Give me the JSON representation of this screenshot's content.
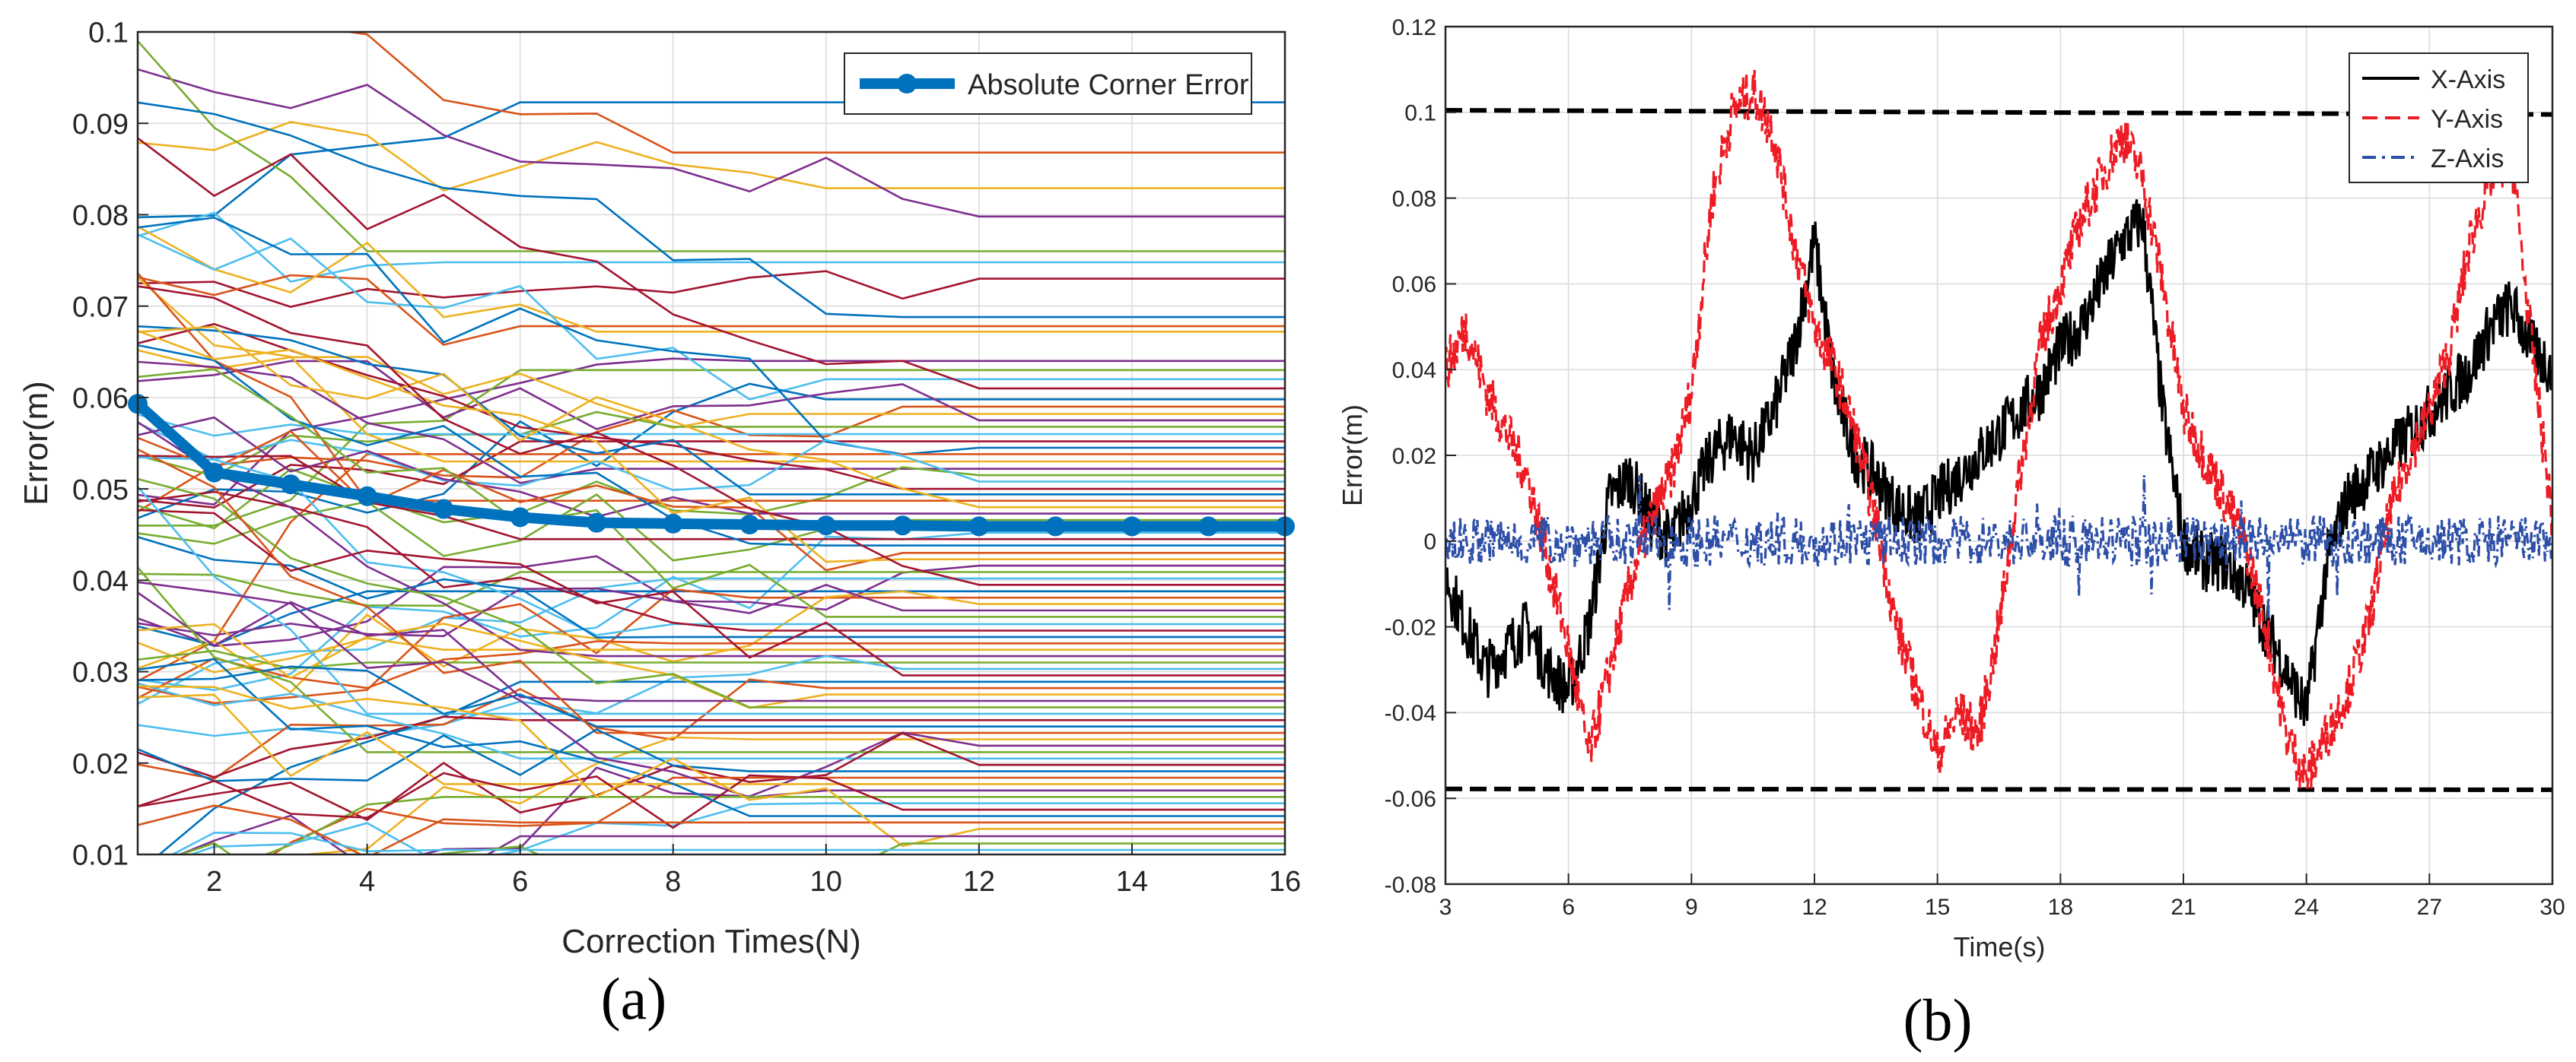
{
  "chart_data": [
    {
      "type": "line",
      "panel_label": "(a)",
      "xlabel": "Correction Times(N)",
      "ylabel": "Error(m)",
      "xlim": [
        1,
        16
      ],
      "ylim": [
        0.01,
        0.1
      ],
      "xticks": [
        2,
        4,
        6,
        8,
        10,
        12,
        14,
        16
      ],
      "xtick_labels": [
        "2",
        "4",
        "6",
        "8",
        "10",
        "12",
        "14",
        "16"
      ],
      "yticks": [
        0.01,
        0.02,
        0.03,
        0.04,
        0.05,
        0.06,
        0.07,
        0.08,
        0.09,
        0.1
      ],
      "ytick_labels": [
        "0.01",
        "0.02",
        "0.03",
        "0.04",
        "0.05",
        "0.06",
        "0.07",
        "0.08",
        "0.09",
        "0.1"
      ],
      "grid": true,
      "legend_position": "top-right",
      "legend": [
        "Absolute Corner Error"
      ],
      "highlight_series": {
        "name": "Absolute Corner Error",
        "color": "#0072BD",
        "x": [
          1,
          2,
          3,
          4,
          5,
          6,
          7,
          8,
          9,
          10,
          11,
          12,
          13,
          14,
          15,
          16
        ],
        "values": [
          0.0593,
          0.0518,
          0.0505,
          0.0492,
          0.0478,
          0.0469,
          0.0463,
          0.0462,
          0.0461,
          0.046,
          0.046,
          0.0459,
          0.0459,
          0.0459,
          0.0459,
          0.0459
        ]
      },
      "background_series": {
        "description_count": 90,
        "colors": [
          "#0072BD",
          "#D95319",
          "#EDB120",
          "#7E2F8E",
          "#77AC30",
          "#4DBEEE",
          "#A2142F"
        ],
        "final_values": [
          0.0923,
          0.0868,
          0.0829,
          0.0798,
          0.076,
          0.0748,
          0.073,
          0.0688,
          0.0678,
          0.0672,
          0.064,
          0.063,
          0.062,
          0.061,
          0.0598,
          0.059,
          0.0582,
          0.0575,
          0.0568,
          0.056,
          0.0552,
          0.0545,
          0.0538,
          0.053,
          0.0522,
          0.0515,
          0.0508,
          0.05,
          0.0494,
          0.0487,
          0.048,
          0.0473,
          0.0466,
          0.0452,
          0.0445,
          0.0438,
          0.043,
          0.0423,
          0.0416,
          0.0409,
          0.0402,
          0.0395,
          0.0388,
          0.0381,
          0.0374,
          0.0367,
          0.036,
          0.0352,
          0.0345,
          0.0338,
          0.0331,
          0.0324,
          0.0317,
          0.031,
          0.0303,
          0.0296,
          0.0289,
          0.0282,
          0.0275,
          0.0268,
          0.0261,
          0.0254,
          0.0247,
          0.024,
          0.0233,
          0.0226,
          0.0219,
          0.0212,
          0.0205,
          0.0198,
          0.0191,
          0.0184,
          0.0177,
          0.017,
          0.0163,
          0.0156,
          0.0149,
          0.0142,
          0.0135,
          0.0128,
          0.012,
          0.0112,
          0.0105
        ]
      }
    },
    {
      "type": "line",
      "panel_label": "(b)",
      "xlabel": "Time(s)",
      "ylabel": "Error(m)",
      "xlim": [
        3,
        30
      ],
      "ylim": [
        -0.08,
        0.12
      ],
      "xticks": [
        3,
        6,
        9,
        12,
        15,
        18,
        21,
        24,
        27,
        30
      ],
      "xtick_labels": [
        "3",
        "6",
        "9",
        "12",
        "15",
        "18",
        "21",
        "24",
        "27",
        "30"
      ],
      "yticks": [
        -0.08,
        -0.06,
        -0.04,
        -0.02,
        0,
        0.02,
        0.04,
        0.06,
        0.08,
        0.1,
        0.12
      ],
      "ytick_labels": [
        "-0.08",
        "-0.06",
        "-0.04",
        "-0.02",
        "0",
        "0.02",
        "0.04",
        "0.06",
        "0.08",
        "0.1",
        "0.12"
      ],
      "grid": true,
      "legend_position": "top-right",
      "legend": [
        "X-Axis",
        "Y-Axis",
        "Z-Axis"
      ],
      "reference_lines": [
        {
          "from": [
            3,
            0.1005
          ],
          "to": [
            30,
            0.0995
          ],
          "color": "#000000",
          "style": "dashed"
        },
        {
          "from": [
            3,
            -0.0578
          ],
          "to": [
            30,
            -0.058
          ],
          "color": "#000000",
          "style": "dashed"
        }
      ],
      "series": [
        {
          "name": "X-Axis",
          "color": "#000000",
          "style": "solid",
          "x": [
            3.0,
            3.5,
            4.0,
            4.5,
            5.0,
            5.5,
            6.0,
            6.5,
            7.0,
            7.5,
            8.0,
            8.5,
            9.0,
            9.5,
            10.0,
            10.5,
            11.0,
            11.5,
            12.0,
            12.5,
            13.0,
            13.5,
            14.0,
            14.5,
            15.0,
            15.5,
            16.0,
            16.5,
            17.0,
            17.5,
            18.0,
            18.5,
            19.0,
            19.5,
            20.0,
            20.5,
            21.0,
            21.5,
            22.0,
            22.5,
            23.0,
            23.5,
            24.0,
            24.5,
            25.0,
            25.5,
            26.0,
            26.5,
            27.0,
            27.5,
            28.0,
            28.5,
            29.0,
            29.5,
            30.0
          ],
          "values": [
            -0.008,
            -0.02,
            -0.03,
            -0.025,
            -0.02,
            -0.03,
            -0.035,
            -0.02,
            0.01,
            0.015,
            0.005,
            0.0,
            0.01,
            0.02,
            0.025,
            0.02,
            0.03,
            0.045,
            0.07,
            0.035,
            0.02,
            0.015,
            0.008,
            0.005,
            0.01,
            0.015,
            0.02,
            0.025,
            0.03,
            0.035,
            0.045,
            0.05,
            0.06,
            0.07,
            0.075,
            0.03,
            0.0,
            -0.005,
            -0.005,
            -0.01,
            -0.02,
            -0.03,
            -0.04,
            -0.005,
            0.01,
            0.015,
            0.02,
            0.025,
            0.03,
            0.035,
            0.04,
            0.05,
            0.055,
            0.045,
            0.04
          ]
        },
        {
          "name": "Y-Axis",
          "color": "#ED1C24",
          "style": "dashed",
          "x": [
            3.0,
            3.5,
            4.0,
            4.5,
            5.0,
            5.5,
            6.0,
            6.5,
            7.0,
            7.5,
            8.0,
            8.5,
            9.0,
            9.5,
            10.0,
            10.5,
            11.0,
            11.5,
            12.0,
            12.5,
            13.0,
            13.5,
            14.0,
            14.5,
            15.0,
            15.5,
            16.0,
            16.5,
            17.0,
            17.5,
            18.0,
            18.5,
            19.0,
            19.5,
            20.0,
            20.5,
            21.0,
            21.5,
            22.0,
            22.5,
            23.0,
            23.5,
            24.0,
            24.5,
            25.0,
            25.5,
            26.0,
            26.5,
            27.0,
            27.5,
            28.0,
            28.5,
            29.0,
            29.5,
            30.0
          ],
          "values": [
            0.04,
            0.05,
            0.035,
            0.025,
            0.015,
            -0.005,
            -0.025,
            -0.05,
            -0.03,
            -0.01,
            0.005,
            0.015,
            0.035,
            0.08,
            0.1,
            0.105,
            0.095,
            0.07,
            0.05,
            0.04,
            0.025,
            0.005,
            -0.02,
            -0.035,
            -0.05,
            -0.04,
            -0.045,
            -0.02,
            0.015,
            0.045,
            0.06,
            0.075,
            0.085,
            0.095,
            0.085,
            0.06,
            0.03,
            0.02,
            0.01,
            0.0,
            -0.02,
            -0.045,
            -0.055,
            -0.045,
            -0.035,
            -0.02,
            0.005,
            0.02,
            0.03,
            0.045,
            0.07,
            0.085,
            0.09,
            0.045,
            0.005
          ]
        },
        {
          "name": "Z-Axis",
          "color": "#2E4FA8",
          "style": "dash-dot",
          "baseline": 0.0,
          "amplitude": 0.006
        }
      ]
    }
  ]
}
